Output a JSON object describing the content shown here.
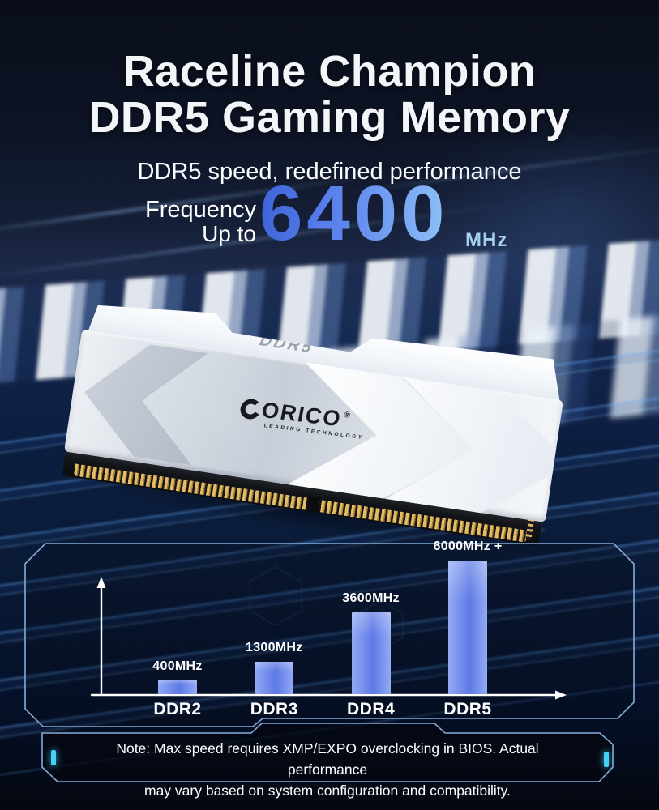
{
  "header": {
    "title_line1": "Raceline Champion",
    "title_line2": "DDR5 Gaming Memory",
    "subtitle": "DDR5 speed, redefined performance"
  },
  "frequency": {
    "label_line1": "Frequency",
    "label_line2": "Up to",
    "value": "6400",
    "unit": "MHz"
  },
  "product": {
    "module_label": "DDR5",
    "brand": "ORICO",
    "brand_reg_mark": "®",
    "brand_tagline": "LEADING TECHNOLOGY",
    "brand_logo_icon": "orico-ring"
  },
  "chart_data": {
    "type": "bar",
    "categories": [
      "DDR2",
      "DDR3",
      "DDR4",
      "DDR5"
    ],
    "values": [
      400,
      1300,
      3600,
      6000
    ],
    "value_labels": [
      "400MHz",
      "1300MHz",
      "3600MHz",
      "6000MHz +"
    ],
    "unit": "MHz",
    "ylim": [
      0,
      6400
    ],
    "grid": false,
    "legend": "none",
    "title": ""
  },
  "note": {
    "line1": "Note: Max speed requires XMP/EXPO overclocking in BIOS. Actual performance",
    "line2": "may vary based on system configuration and compatibility."
  },
  "colors": {
    "accent_blue": "#3d63d8",
    "light_blue": "#8fc2f8",
    "cyan": "#45d2f5",
    "panel_border": "#85abd8",
    "bar_light": "#94aaf4",
    "bar_dark": "#5c79e5",
    "background": "#0a0f1e"
  }
}
